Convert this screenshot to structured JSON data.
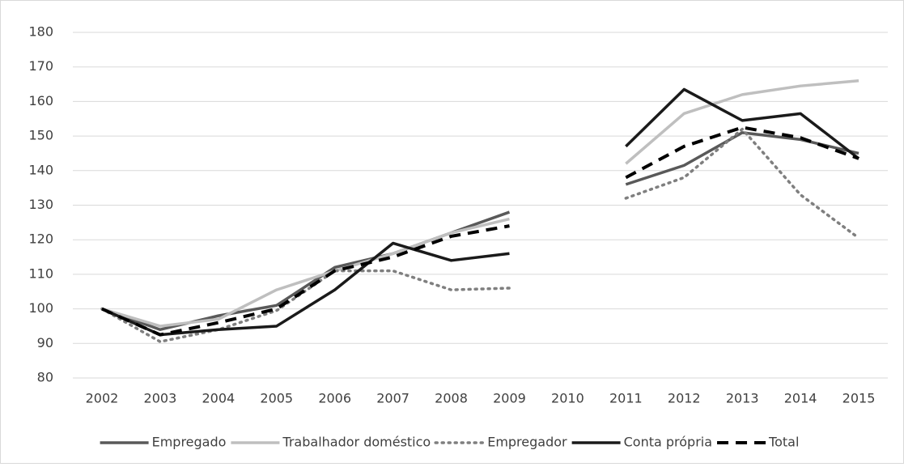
{
  "chart_data": {
    "type": "line",
    "categories": [
      "2002",
      "2003",
      "2004",
      "2005",
      "2006",
      "2007",
      "2008",
      "2009",
      "2010",
      "2011",
      "2012",
      "2013",
      "2014",
      "2015"
    ],
    "series": [
      {
        "name": "Empregado",
        "color": "#595959",
        "style": "solid",
        "values": [
          100,
          94,
          98,
          101,
          112,
          116,
          122,
          128,
          null,
          136,
          141.5,
          151,
          149,
          145
        ]
      },
      {
        "name": "Trabalhador doméstico",
        "color": "#bfbfbf",
        "style": "solid",
        "values": [
          100,
          95,
          97,
          105.5,
          111,
          116,
          122,
          126,
          null,
          142,
          156.5,
          162,
          164.5,
          166
        ]
      },
      {
        "name": "Empregador",
        "color": "#7f7f7f",
        "style": "dotted",
        "values": [
          100,
          90.5,
          94,
          99.5,
          111,
          111,
          105.5,
          106,
          null,
          132,
          138,
          152,
          133,
          120.5
        ]
      },
      {
        "name": "Conta própria",
        "color": "#1a1a1a",
        "style": "solid",
        "values": [
          100,
          92.5,
          94,
          95,
          105.5,
          119,
          114,
          116,
          null,
          147,
          163.5,
          154.5,
          156.5,
          143.5
        ]
      },
      {
        "name": "Total",
        "color": "#000000",
        "style": "dashed",
        "values": [
          100,
          92.5,
          96,
          100,
          111,
          115,
          121,
          124,
          null,
          138,
          147,
          152.5,
          149.5,
          143.5
        ]
      }
    ],
    "ylim": [
      80,
      180
    ],
    "yticks": [
      80,
      90,
      100,
      110,
      120,
      130,
      140,
      150,
      160,
      170,
      180
    ],
    "grid": true,
    "legend": "bottom"
  }
}
